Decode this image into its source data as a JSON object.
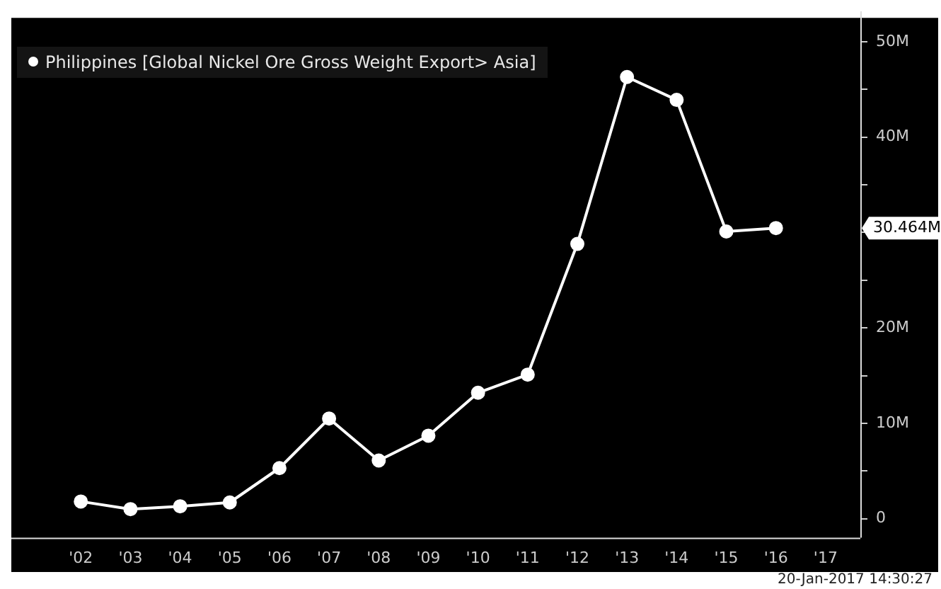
{
  "chart_data": {
    "type": "line",
    "x": [
      2002,
      2003,
      2004,
      2005,
      2006,
      2007,
      2008,
      2009,
      2010,
      2011,
      2012,
      2013,
      2014,
      2015,
      2016
    ],
    "series": [
      {
        "name": "Philippines [Global Nickel Ore Gross Weight Export> Asia]",
        "color": "#ffffff",
        "values": [
          1.8,
          1.0,
          1.3,
          1.7,
          5.3,
          10.5,
          6.1,
          8.7,
          13.2,
          15.1,
          28.8,
          46.3,
          43.9,
          30.1,
          30.464
        ]
      }
    ],
    "xlim": [
      2000.6,
      2017.7
    ],
    "xticks": [
      {
        "value": 2002,
        "label": "'02"
      },
      {
        "value": 2003,
        "label": "'03"
      },
      {
        "value": 2004,
        "label": "'04"
      },
      {
        "value": 2005,
        "label": "'05"
      },
      {
        "value": 2006,
        "label": "'06"
      },
      {
        "value": 2007,
        "label": "'07"
      },
      {
        "value": 2008,
        "label": "'08"
      },
      {
        "value": 2009,
        "label": "'09"
      },
      {
        "value": 2010,
        "label": "'10"
      },
      {
        "value": 2011,
        "label": "'11"
      },
      {
        "value": 2012,
        "label": "'12"
      },
      {
        "value": 2013,
        "label": "'13"
      },
      {
        "value": 2014,
        "label": "'14"
      },
      {
        "value": 2015,
        "label": "'15"
      },
      {
        "value": 2016,
        "label": "'16"
      },
      {
        "value": 2017,
        "label": "'17"
      }
    ],
    "ylim": [
      -2,
      52.5
    ],
    "yticks": [
      {
        "value": 0,
        "label": "0"
      },
      {
        "value": 5,
        "label": null
      },
      {
        "value": 10,
        "label": "10M"
      },
      {
        "value": 15,
        "label": null
      },
      {
        "value": 20,
        "label": "20M"
      },
      {
        "value": 25,
        "label": null
      },
      {
        "value": 30,
        "label": null
      },
      {
        "value": 35,
        "label": null
      },
      {
        "value": 40,
        "label": "40M"
      },
      {
        "value": 45,
        "label": null
      },
      {
        "value": 50,
        "label": "50M"
      }
    ],
    "annotations": [
      "30.464M",
      "20-Jan-2017 14:30:27"
    ],
    "legend": "top left",
    "marker": "circle",
    "line_style": "solid",
    "grid": false
  }
}
